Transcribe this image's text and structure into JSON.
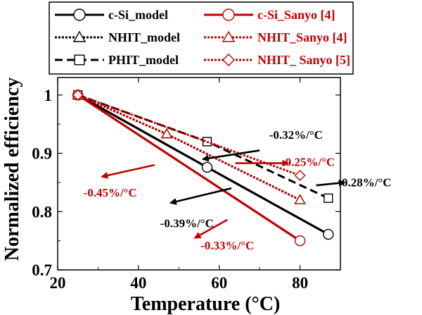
{
  "chart_data": {
    "type": "line",
    "xlabel": "Temperature (°C)",
    "ylabel": "Normalized efficiency",
    "xlim": [
      20,
      90
    ],
    "ylim": [
      0.7,
      1.03
    ],
    "x_ticks": [
      "20",
      "40",
      "60",
      "80"
    ],
    "y_ticks": [
      "0.7",
      "0.8",
      "0.9",
      "1"
    ],
    "legend_position": "top (two columns)",
    "series": [
      {
        "name": "c-Si_model",
        "color": "#000000",
        "dash": "solid",
        "marker": "circle",
        "points": [
          [
            25,
            1.0
          ],
          [
            57,
            0.876
          ],
          [
            87,
            0.761
          ]
        ]
      },
      {
        "name": "NHIT_model",
        "color": "#000000",
        "dash": "dotted",
        "marker": "triangle",
        "points": [
          [
            25,
            1.0
          ],
          [
            47,
            0.933
          ],
          [
            80,
            0.82
          ]
        ]
      },
      {
        "name": "PHIT_model",
        "color": "#000000",
        "dash": "dashed",
        "marker": "square",
        "points": [
          [
            25,
            1.0
          ],
          [
            57,
            0.92
          ],
          [
            87,
            0.823
          ]
        ]
      },
      {
        "name": "c-Si_Sanyo [4]",
        "color": "#c00000",
        "dash": "solid",
        "marker": "circle",
        "points": [
          [
            25,
            1.0
          ],
          [
            80,
            0.75
          ]
        ]
      },
      {
        "name": "NHIT_Sanyo [4]",
        "color": "#c00000",
        "dash": "dotted",
        "marker": "triangle",
        "points": [
          [
            25,
            1.0
          ],
          [
            47,
            0.933
          ],
          [
            80,
            0.82
          ]
        ]
      },
      {
        "name": "NHIT_ Sanyo [5]",
        "color": "#c00000",
        "dash": "dotted",
        "marker": "diamond",
        "points": [
          [
            25,
            1.0
          ],
          [
            80,
            0.862
          ]
        ]
      }
    ],
    "annotations": [
      {
        "text": "-0.32%/°C",
        "color": "#000000",
        "arrow_from": [
          70,
          0.905
        ],
        "arrow_to": [
          56,
          0.89
        ],
        "text_at": [
          79,
          0.925
        ]
      },
      {
        "text": "-0.25%/°C",
        "color": "#c00000",
        "arrow_from": [
          64,
          0.883
        ],
        "arrow_to": [
          77,
          0.883
        ],
        "text_at": [
          82,
          0.878
        ]
      },
      {
        "text": "-0.28%/°C",
        "color": "#000000",
        "arrow_from": [
          84,
          0.845
        ],
        "arrow_to": [
          91,
          0.85
        ],
        "text_at": [
          96,
          0.843
        ]
      },
      {
        "text": "-0.45%/°C",
        "color": "#c00000",
        "arrow_from": [
          44,
          0.88
        ],
        "arrow_to": [
          31,
          0.86
        ],
        "text_at": [
          33,
          0.826
        ]
      },
      {
        "text": "-0.39%/°C",
        "color": "#000000",
        "arrow_from": [
          63,
          0.84
        ],
        "arrow_to": [
          48,
          0.815
        ],
        "text_at": [
          52,
          0.773
        ]
      },
      {
        "text": "-0.33%/°C",
        "color": "#c00000",
        "arrow_from": [
          62,
          0.786
        ],
        "arrow_to": [
          54,
          0.755
        ],
        "text_at": [
          62,
          0.735
        ]
      }
    ]
  }
}
